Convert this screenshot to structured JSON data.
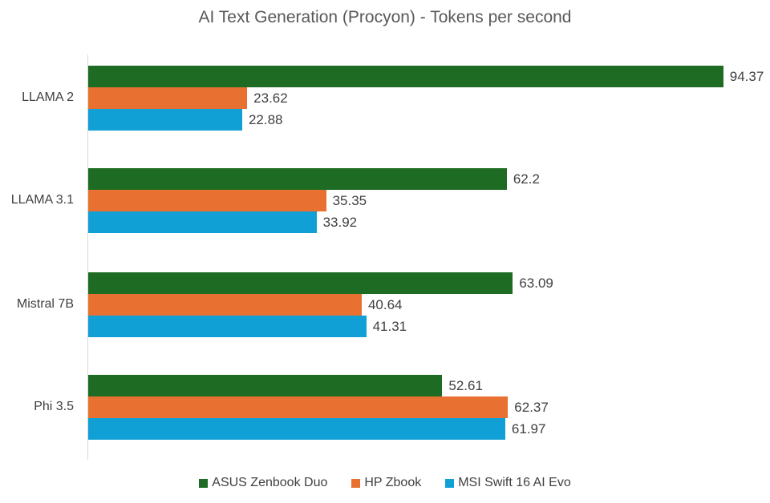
{
  "chart_data": {
    "type": "bar",
    "orientation": "horizontal",
    "title": "AI Text Generation (Procyon) - Tokens per second",
    "xlabel": "",
    "ylabel": "",
    "categories": [
      "LLAMA 2",
      "LLAMA 3.1",
      "Mistral 7B",
      "Phi 3.5"
    ],
    "series": [
      {
        "name": "ASUS Zenbook Duo",
        "color": "#1e6b23",
        "values": [
          94.37,
          62.2,
          63.09,
          52.61
        ],
        "labels": [
          "94.37",
          "62.2",
          "63.09",
          "52.61"
        ]
      },
      {
        "name": "HP Zbook",
        "color": "#e87131",
        "values": [
          23.62,
          35.35,
          40.64,
          62.37
        ],
        "labels": [
          "23.62",
          "35.35",
          "40.64",
          "62.37"
        ]
      },
      {
        "name": "MSI Swift 16 AI Evo",
        "color": "#11a0d6",
        "values": [
          22.88,
          33.92,
          41.31,
          61.97
        ],
        "labels": [
          "22.88",
          "33.92",
          "41.31",
          "61.97"
        ]
      }
    ],
    "grid": false,
    "data_labels": true,
    "legend_position": "bottom"
  }
}
